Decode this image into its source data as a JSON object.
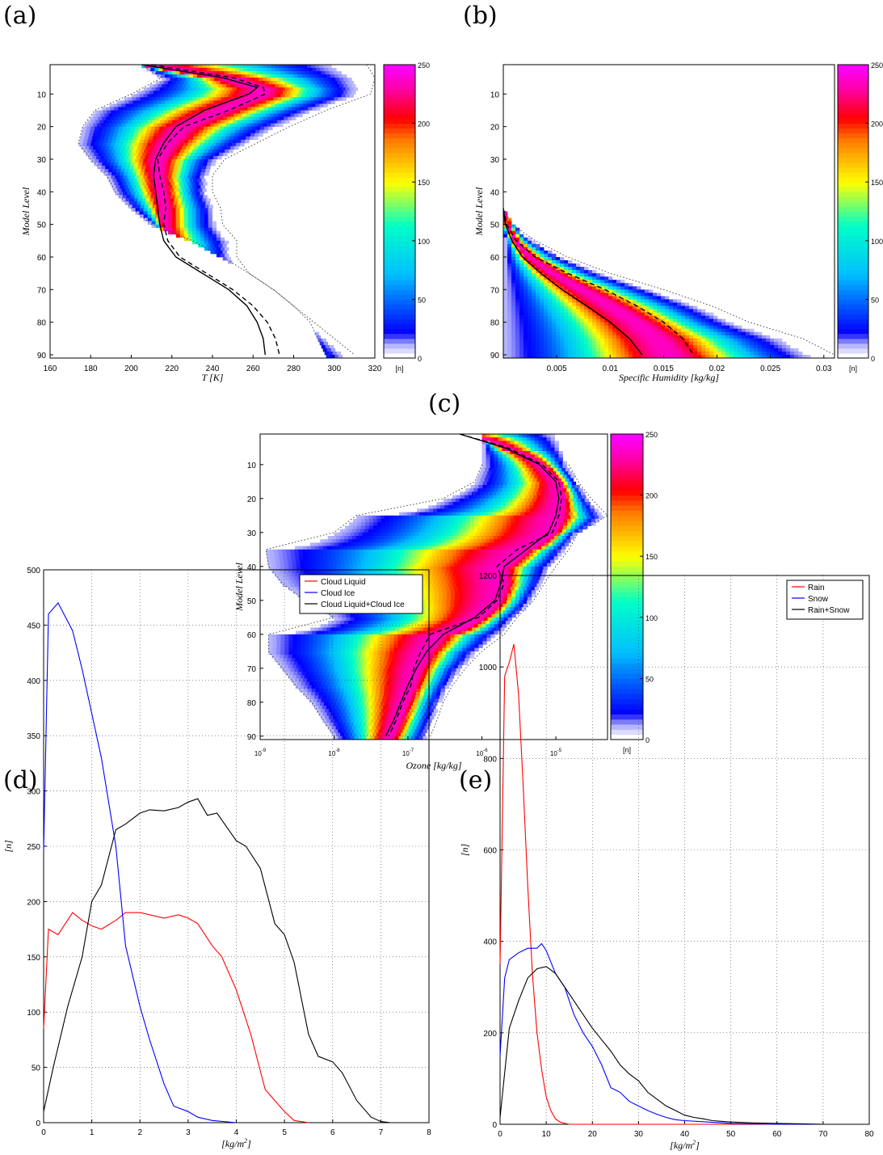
{
  "panel_labels": {
    "a": "(a)",
    "b": "(b)",
    "c": "(c)",
    "d": "(d)",
    "e": "(e)"
  },
  "colorbar": {
    "ticks": [
      "0",
      "50",
      "100",
      "150",
      "200",
      "250"
    ],
    "unit_label": "[n]",
    "range": [
      0,
      250
    ]
  },
  "chart_data": [
    {
      "id": "a",
      "type": "heatmap",
      "xlabel": "T [K]",
      "ylabel": "Model Level",
      "xlim": [
        160,
        320
      ],
      "ylim": [
        91,
        1
      ],
      "xticks": [
        "160",
        "180",
        "200",
        "220",
        "240",
        "260",
        "280",
        "300",
        "320"
      ],
      "yticks": [
        "10",
        "20",
        "30",
        "40",
        "50",
        "60",
        "70",
        "80",
        "90"
      ],
      "series": [
        {
          "style": "solid-mean",
          "level": [
            1,
            5,
            8,
            10,
            15,
            20,
            25,
            30,
            35,
            40,
            45,
            50,
            55,
            60,
            65,
            70,
            75,
            80,
            85,
            90
          ],
          "x": [
            205,
            245,
            262,
            258,
            236,
            222,
            216,
            212,
            211,
            212,
            213,
            214,
            216,
            222,
            235,
            248,
            257,
            262,
            265,
            266
          ]
        },
        {
          "style": "dashed-median",
          "level": [
            1,
            5,
            8,
            10,
            15,
            20,
            25,
            30,
            35,
            40,
            45,
            50,
            55,
            60,
            65,
            70,
            75,
            80,
            85,
            90
          ],
          "x": [
            210,
            250,
            265,
            266,
            248,
            226,
            218,
            213,
            214,
            216,
            217,
            216,
            218,
            224,
            237,
            250,
            260,
            267,
            271,
            273
          ]
        },
        {
          "style": "dotted-min",
          "level": [
            1,
            5,
            10,
            15,
            20,
            25,
            30,
            35,
            40,
            45,
            50,
            55,
            60,
            65,
            70,
            75,
            80,
            85,
            90
          ],
          "x": [
            205,
            215,
            200,
            182,
            176,
            174,
            180,
            188,
            192,
            200,
            210,
            230,
            245,
            258,
            270,
            280,
            288,
            292,
            296
          ]
        },
        {
          "style": "dotted-max",
          "level": [
            1,
            5,
            10,
            15,
            20,
            25,
            30,
            35,
            40,
            45,
            50,
            55,
            60,
            65,
            70,
            75,
            80,
            85,
            90
          ],
          "x": [
            316,
            320,
            318,
            296,
            278,
            262,
            246,
            240,
            240,
            244,
            245,
            252,
            252,
            258,
            270,
            280,
            290,
            300,
            310
          ]
        }
      ]
    },
    {
      "id": "b",
      "type": "heatmap",
      "xlabel": "Specific Humidity [kg/kg]",
      "ylabel": "Model Level",
      "xlim": [
        0,
        0.031
      ],
      "ylim": [
        91,
        1
      ],
      "xticks": [
        "0.005",
        "0.01",
        "0.015",
        "0.02",
        "0.025",
        "0.03"
      ],
      "yticks": [
        "10",
        "20",
        "30",
        "40",
        "50",
        "60",
        "70",
        "80",
        "90"
      ],
      "series": [
        {
          "style": "solid-mean",
          "level": [
            45,
            50,
            55,
            60,
            65,
            70,
            75,
            80,
            85,
            90
          ],
          "x": [
            0.0,
            0.0002,
            0.0008,
            0.0018,
            0.0035,
            0.0055,
            0.0078,
            0.01,
            0.0118,
            0.013
          ]
        },
        {
          "style": "dashed-median",
          "level": [
            45,
            50,
            55,
            60,
            65,
            70,
            75,
            80,
            85,
            90
          ],
          "x": [
            0.0,
            0.0003,
            0.0012,
            0.003,
            0.006,
            0.0095,
            0.0125,
            0.015,
            0.0168,
            0.0178
          ]
        },
        {
          "style": "dotted-max",
          "level": [
            45,
            50,
            55,
            60,
            65,
            70,
            75,
            80,
            85,
            90
          ],
          "x": [
            0.0,
            0.0008,
            0.003,
            0.006,
            0.01,
            0.015,
            0.0195,
            0.023,
            0.028,
            0.031
          ]
        }
      ]
    },
    {
      "id": "c",
      "type": "heatmap",
      "xlabel": "Ozone [kg/kg]",
      "ylabel": "Model Level",
      "xscale": "log",
      "xlim": [
        1e-09,
        5e-05
      ],
      "ylim": [
        91,
        1
      ],
      "xticks": [
        "10^-9",
        "10^-8",
        "10^-7",
        "10^-6",
        "10^-5"
      ],
      "yticks": [
        "10",
        "20",
        "30",
        "40",
        "50",
        "60",
        "70",
        "80",
        "90"
      ],
      "series": [
        {
          "style": "solid-mean",
          "level": [
            1,
            5,
            10,
            15,
            20,
            25,
            30,
            35,
            40,
            45,
            50,
            55,
            60,
            65,
            70,
            75,
            80,
            85,
            90
          ],
          "x": [
            5e-07,
            2e-06,
            6e-06,
            1e-05,
            1.1e-05,
            1e-05,
            8e-06,
            4e-06,
            2e-06,
            1.8e-06,
            1.5e-06,
            8e-07,
            3e-07,
            1.8e-07,
            1.3e-07,
            1e-07,
            8e-08,
            6.5e-08,
            5e-08
          ]
        },
        {
          "style": "dashed-median",
          "level": [
            1,
            5,
            10,
            15,
            20,
            25,
            30,
            35,
            40,
            45,
            50,
            55,
            60,
            65,
            70,
            75,
            80,
            85,
            90
          ],
          "x": [
            5e-07,
            2.2e-06,
            6.5e-06,
            1.1e-05,
            1.2e-05,
            1.1e-05,
            9e-06,
            3e-06,
            1.6e-06,
            2e-06,
            1.6e-06,
            9e-07,
            2e-07,
            1.5e-07,
            1.2e-07,
            1.1e-07,
            8.5e-08,
            7e-08,
            5.5e-08
          ]
        },
        {
          "style": "dotted-min",
          "level": [
            10,
            15,
            20,
            25,
            30,
            35,
            40,
            45,
            50,
            55,
            60,
            65,
            70,
            75,
            80,
            85,
            90
          ],
          "x": [
            1e-06,
            8e-07,
            3e-07,
            2e-08,
            1e-08,
            1.2e-09,
            1.3e-09,
            2e-09,
            4e-09,
            1e-08,
            1.3e-09,
            1.3e-09,
            2e-09,
            3e-09,
            5e-09,
            7e-09,
            1e-08
          ]
        },
        {
          "style": "dotted-max",
          "level": [
            10,
            15,
            20,
            25,
            30,
            35,
            40,
            45,
            50,
            55,
            60,
            65,
            70,
            75,
            80,
            85,
            90
          ],
          "x": [
            1.5e-05,
            2e-05,
            3e-05,
            5e-05,
            2e-05,
            1.5e-05,
            1e-05,
            7e-06,
            5e-06,
            3e-06,
            2e-06,
            1e-06,
            6e-07,
            4e-07,
            3e-07,
            2.5e-07,
            2e-07
          ]
        }
      ]
    },
    {
      "id": "d",
      "type": "line",
      "xlabel": "[kg/m^2]",
      "ylabel": "[n]",
      "xlim": [
        0,
        8
      ],
      "ylim": [
        0,
        500
      ],
      "grid": true,
      "legend": "top-right",
      "xticks": [
        "0",
        "1",
        "2",
        "3",
        "4",
        "5",
        "6",
        "7",
        "8"
      ],
      "yticks": [
        "0",
        "50",
        "100",
        "150",
        "200",
        "250",
        "300",
        "350",
        "400",
        "450",
        "500"
      ],
      "series": [
        {
          "name": "Cloud Liquid",
          "color": "#ff0000",
          "x": [
            0,
            0.1,
            0.3,
            0.6,
            0.8,
            1.0,
            1.2,
            1.5,
            1.7,
            2.0,
            2.5,
            2.8,
            3.0,
            3.2,
            3.5,
            3.7,
            4.0,
            4.3,
            4.6,
            4.8,
            5.0,
            5.2,
            5.5
          ],
          "y": [
            85,
            175,
            170,
            190,
            183,
            178,
            175,
            183,
            190,
            190,
            185,
            188,
            185,
            180,
            160,
            150,
            120,
            80,
            30,
            20,
            10,
            2,
            0
          ]
        },
        {
          "name": "Cloud Ice",
          "color": "#0000ff",
          "x": [
            0,
            0.1,
            0.3,
            0.6,
            0.8,
            1.0,
            1.2,
            1.5,
            1.7,
            2.0,
            2.2,
            2.5,
            2.7,
            3.0,
            3.2,
            3.5,
            4.0
          ],
          "y": [
            245,
            460,
            470,
            445,
            410,
            370,
            330,
            250,
            160,
            105,
            75,
            35,
            15,
            10,
            5,
            2,
            0
          ]
        },
        {
          "name": "Cloud Liquid+Cloud Ice",
          "color": "#000000",
          "x": [
            0,
            0.2,
            0.5,
            0.8,
            1.0,
            1.2,
            1.5,
            1.7,
            2.0,
            2.2,
            2.5,
            2.8,
            3.0,
            3.2,
            3.4,
            3.6,
            4.0,
            4.2,
            4.5,
            4.8,
            5.0,
            5.2,
            5.5,
            5.7,
            6.0,
            6.2,
            6.5,
            6.8,
            7.0,
            7.2
          ],
          "y": [
            10,
            50,
            105,
            150,
            200,
            215,
            265,
            270,
            280,
            283,
            282,
            285,
            290,
            293,
            278,
            280,
            255,
            250,
            230,
            180,
            170,
            145,
            80,
            60,
            55,
            45,
            20,
            5,
            1,
            0
          ]
        }
      ]
    },
    {
      "id": "e",
      "type": "line",
      "xlabel": "[kg/m^2]",
      "ylabel": "[n]",
      "xlim": [
        0,
        80
      ],
      "ylim": [
        0,
        1200
      ],
      "grid": true,
      "legend": "top-right",
      "xticks": [
        "0",
        "10",
        "20",
        "30",
        "40",
        "50",
        "60",
        "70",
        "80"
      ],
      "yticks": [
        "0",
        "200",
        "400",
        "600",
        "800",
        "1000",
        "1200"
      ],
      "series": [
        {
          "name": "Rain",
          "color": "#ff0000",
          "x": [
            0,
            1,
            2,
            3,
            4,
            5,
            6,
            7,
            8,
            9,
            10,
            11,
            12,
            13,
            14,
            15,
            16,
            18,
            20,
            25,
            30,
            40,
            50,
            60,
            70
          ],
          "y": [
            350,
            980,
            1010,
            1050,
            940,
            740,
            520,
            330,
            200,
            120,
            60,
            30,
            12,
            5,
            2,
            0,
            0,
            0,
            0,
            0,
            0,
            0,
            0,
            0,
            0
          ]
        },
        {
          "name": "Snow",
          "color": "#0000ff",
          "x": [
            0,
            1,
            2,
            4,
            6,
            8,
            9,
            10,
            12,
            14,
            16,
            18,
            20,
            22,
            24,
            26,
            28,
            30,
            32,
            34,
            36,
            38,
            40,
            45,
            50,
            55,
            60,
            65,
            70
          ],
          "y": [
            150,
            320,
            360,
            375,
            385,
            385,
            395,
            380,
            330,
            300,
            240,
            200,
            170,
            130,
            80,
            70,
            50,
            40,
            30,
            22,
            15,
            10,
            8,
            5,
            2,
            1,
            0,
            0,
            0
          ]
        },
        {
          "name": "Rain+Snow",
          "color": "#000000",
          "x": [
            0,
            2,
            4,
            6,
            8,
            10,
            12,
            14,
            16,
            18,
            20,
            22,
            24,
            26,
            28,
            30,
            32,
            34,
            36,
            38,
            40,
            42,
            44,
            46,
            50,
            55,
            60,
            65,
            70
          ],
          "y": [
            15,
            210,
            270,
            320,
            340,
            345,
            330,
            300,
            270,
            240,
            210,
            185,
            160,
            130,
            110,
            95,
            70,
            55,
            40,
            30,
            20,
            15,
            12,
            8,
            5,
            3,
            2,
            1,
            0
          ]
        }
      ]
    }
  ]
}
